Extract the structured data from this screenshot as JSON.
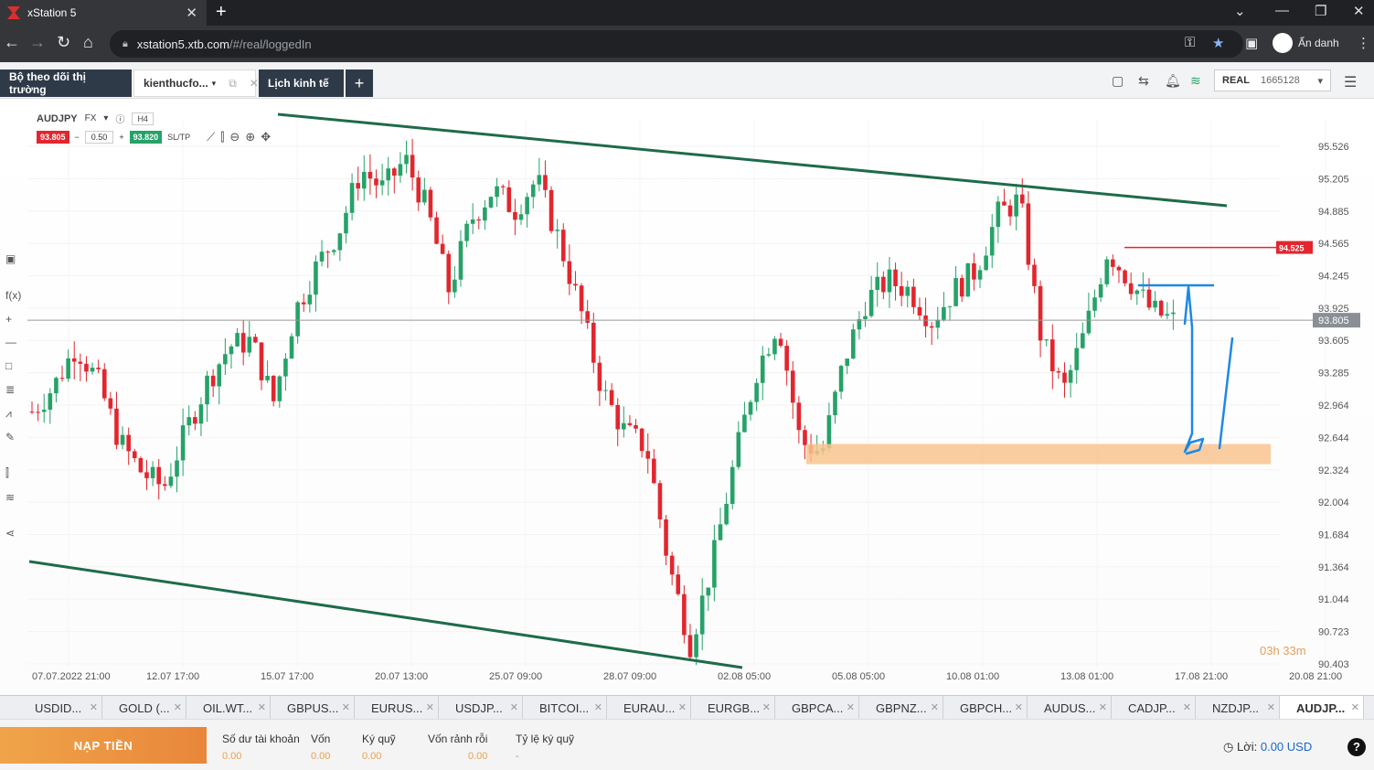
{
  "browser": {
    "tab_title": "xStation 5",
    "url_host": "xstation5.xtb.com",
    "url_path": "/#/real/loggedIn",
    "incognito_label": "Ẩn danh"
  },
  "appbar": {
    "tabs": [
      "Bộ theo dõi thị trường",
      "kienthucfo...",
      "Lịch kinh tế"
    ],
    "account_type": "REAL",
    "account_number": "1665128"
  },
  "instrument": {
    "symbol": "AUDJPY",
    "type": "FX",
    "timeframe": "H4",
    "sell_price": "93.805",
    "volume": "0.50",
    "buy_price": "93.820",
    "sltp_label": "SL/TP",
    "timer": "03h 33m"
  },
  "colors": {
    "bull": "#26a268",
    "bear": "#e2262e",
    "trendline": "#1e6b4a",
    "support_zone": "#f8c48e",
    "annotation": "#1e88e5",
    "level_line": "#e2262e"
  },
  "chart_data": {
    "type": "candlestick",
    "symbol": "AUDJPY",
    "timeframe": "H4",
    "y_ticks": [
      "95.526",
      "95.205",
      "94.885",
      "94.565",
      "94.245",
      "93.925",
      "93.605",
      "93.285",
      "92.964",
      "92.644",
      "92.324",
      "92.004",
      "91.684",
      "91.364",
      "91.044",
      "90.723",
      "90.403"
    ],
    "ylim": [
      90.403,
      95.526
    ],
    "x_ticks": [
      "07.07.2022 21:00",
      "12.07 17:00",
      "15.07 17:00",
      "20.07 13:00",
      "25.07 09:00",
      "28.07 09:00",
      "02.08 05:00",
      "05.08 05:00",
      "10.08 01:00",
      "13.08 01:00",
      "17.08 21:00",
      "20.08 21:00"
    ],
    "current_price": "93.805",
    "marked_level": "94.525",
    "support_zone": [
      92.38,
      92.58
    ],
    "price_path": [
      92.9,
      93.15,
      93.55,
      93.2,
      92.6,
      92.3,
      92.15,
      92.7,
      93.2,
      93.55,
      93.6,
      93.0,
      93.9,
      94.35,
      94.7,
      95.3,
      95.1,
      95.4,
      94.9,
      94.1,
      94.8,
      95.1,
      94.9,
      95.2,
      94.6,
      93.9,
      93.1,
      92.7,
      92.55,
      91.4,
      90.6,
      91.4,
      92.4,
      93.3,
      93.8,
      92.6,
      92.5,
      93.4,
      94.0,
      94.2,
      94.1,
      93.8,
      94.1,
      94.3,
      94.85,
      95.0,
      93.6,
      93.1,
      93.7,
      94.5,
      94.2,
      93.9,
      93.8
    ]
  },
  "symbol_tabs": [
    "USDID...",
    "GOLD (...",
    "OIL.WT...",
    "GBPUS...",
    "EURUS...",
    "USDJP...",
    "BITCOI...",
    "EURAU...",
    "EURGB...",
    "GBPCA...",
    "GBPNZ...",
    "GBPCH...",
    "AUDUS...",
    "CADJP...",
    "NZDJP...",
    "AUDJP..."
  ],
  "account": {
    "deposit_label": "NẠP TIỀN",
    "stats": [
      {
        "label": "Số dư tài khoản",
        "value": "0.00"
      },
      {
        "label": "Vốn",
        "value": "0.00"
      },
      {
        "label": "Ký quỹ",
        "value": "0.00"
      },
      {
        "label": "Vốn rảnh rỗi",
        "value": "0.00"
      },
      {
        "label": "Tỷ lệ ký quỹ",
        "value": "-"
      }
    ],
    "profit_label": "Lời:",
    "profit_value": "0.00 USD"
  }
}
